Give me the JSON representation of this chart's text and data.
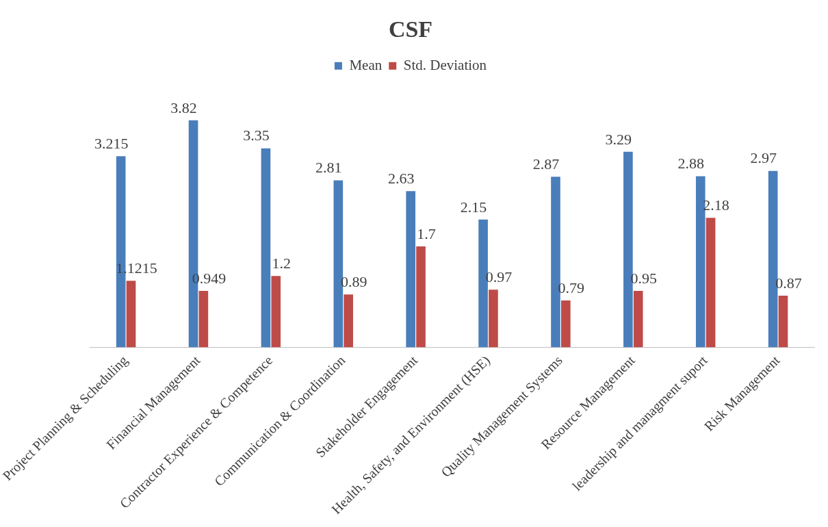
{
  "chart_data": {
    "type": "bar",
    "title": "CSF",
    "categories": [
      "Project Planning & Scheduling",
      "Financial Management",
      "Contractor Experience & Competence",
      "Communication & Coordination",
      "Stakeholder Engagement",
      "Health, Safety, and Environment (HSE)",
      "Quality Management Systems",
      "Resource Management",
      "leadership and managment suport",
      "Risk Management"
    ],
    "series": [
      {
        "name": "Mean",
        "color": "#4a7ebb",
        "values": [
          3.215,
          3.82,
          3.35,
          2.81,
          2.63,
          2.15,
          2.87,
          3.29,
          2.88,
          2.97
        ]
      },
      {
        "name": "Std. Deviation",
        "color": "#be4b48",
        "values": [
          1.1215,
          0.949,
          1.2,
          0.89,
          1.7,
          0.97,
          0.79,
          0.95,
          2.18,
          0.87
        ]
      }
    ],
    "data_labels": true,
    "legend": "top",
    "grid": false
  }
}
